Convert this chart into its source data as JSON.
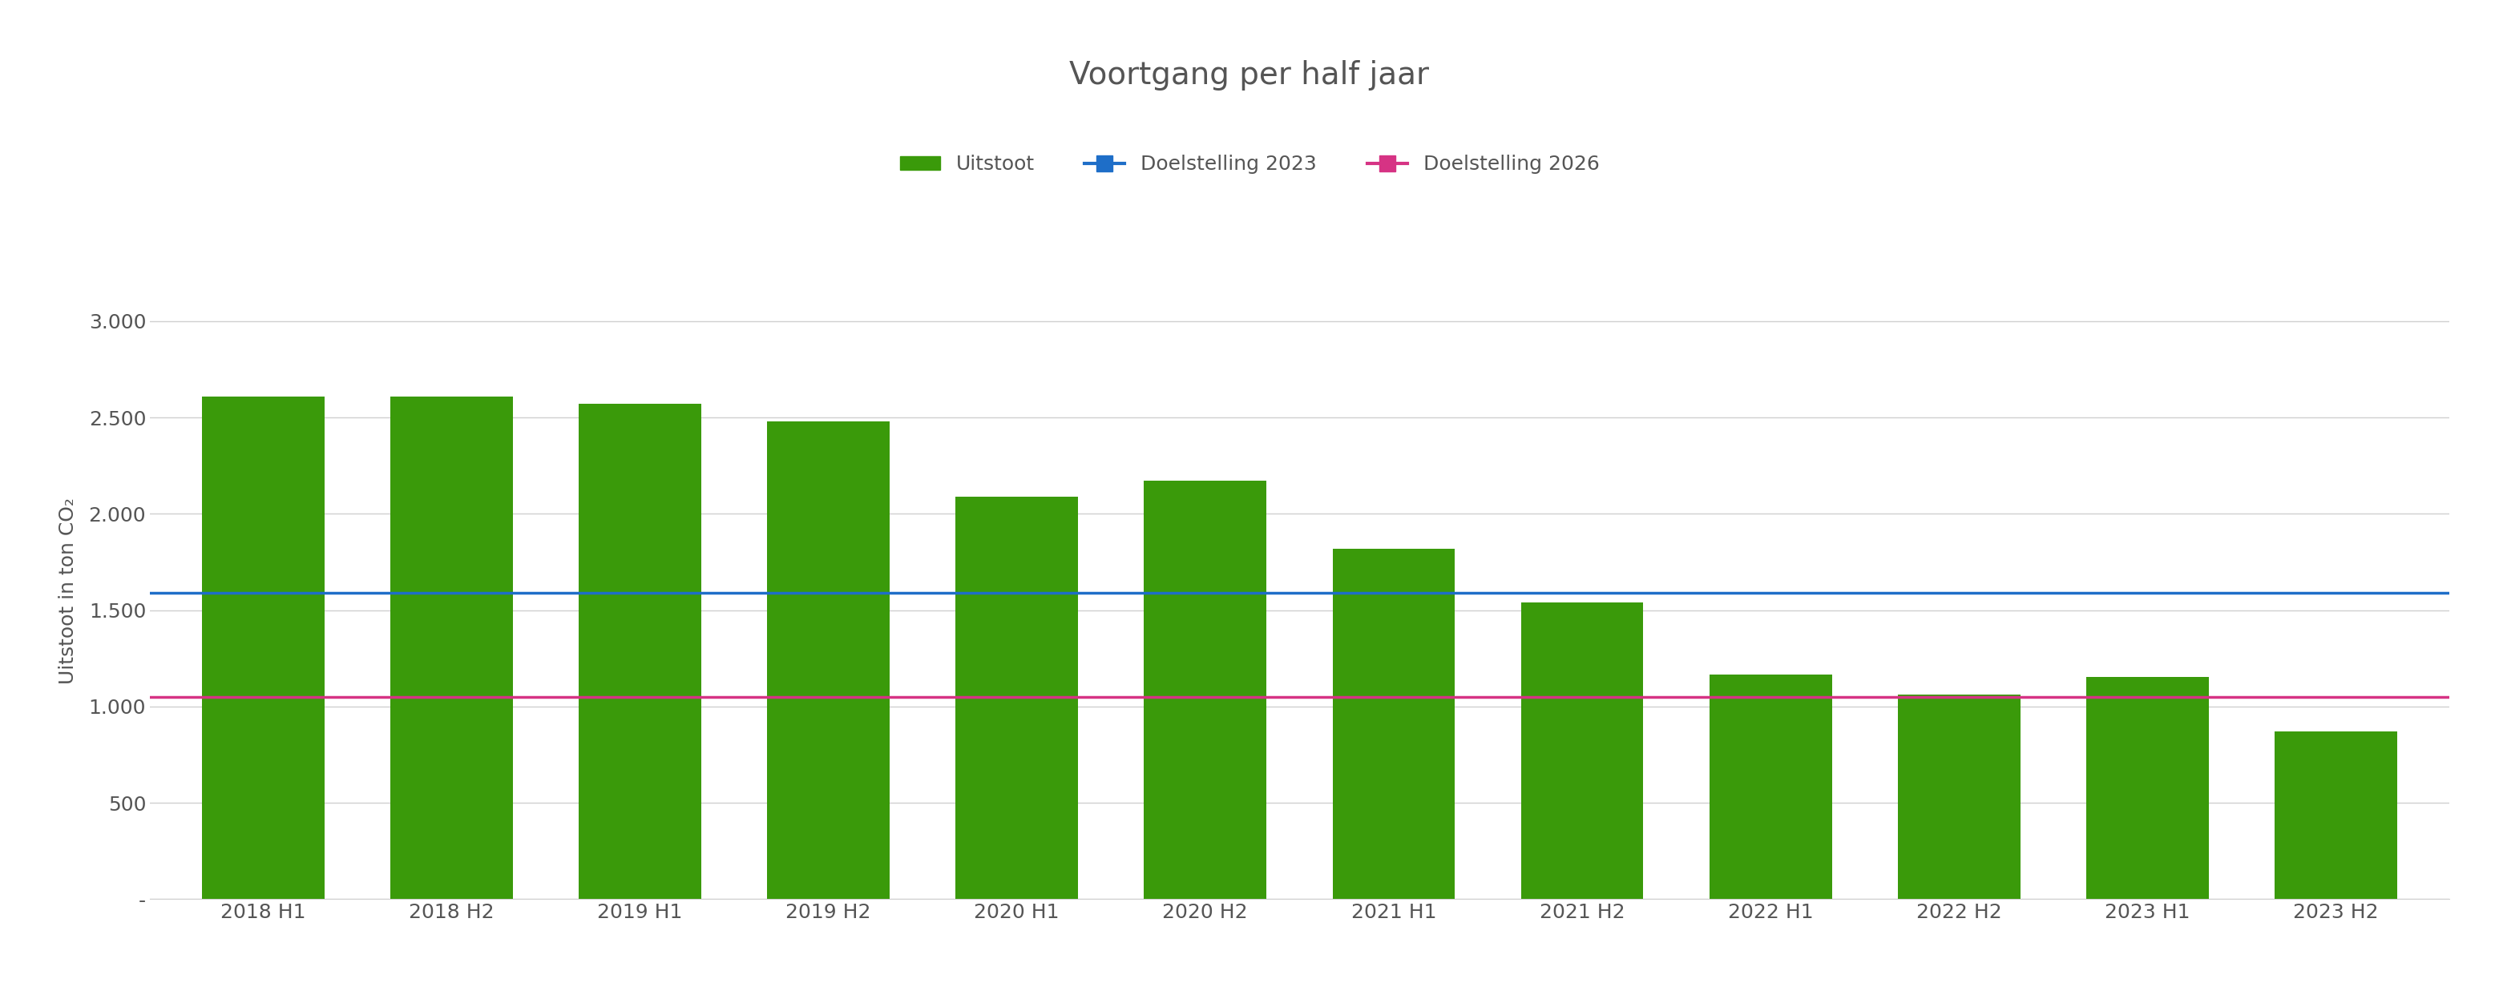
{
  "title": "Voortgang per half jaar",
  "categories": [
    "2018 H1",
    "2018 H2",
    "2019 H1",
    "2019 H2",
    "2020 H1",
    "2020 H2",
    "2021 H1",
    "2021 H2",
    "2022 H1",
    "2022 H2",
    "2023 H1",
    "2023 H2"
  ],
  "values": [
    2610,
    2610,
    2570,
    2480,
    2090,
    2170,
    1820,
    1540,
    1165,
    1060,
    1155,
    870
  ],
  "bar_color": "#3a9a0a",
  "doelstelling_2023": 1590,
  "doelstelling_2026": 1050,
  "doelstelling_2023_color": "#1e6ec8",
  "doelstelling_2026_color": "#d63384",
  "ylabel": "Uitstoot in ton CO₂",
  "ylim_min": 0,
  "ylim_max": 3200,
  "yticks": [
    0,
    500,
    1000,
    1500,
    2000,
    2500,
    3000
  ],
  "ytick_labels": [
    "-",
    "500",
    "1.000",
    "1.500",
    "2.000",
    "2.500",
    "3.000"
  ],
  "background_color": "#ffffff",
  "grid_color": "#d0d0d0",
  "title_fontsize": 28,
  "axis_label_fontsize": 18,
  "tick_fontsize": 18,
  "legend_fontsize": 18,
  "title_color": "#555555",
  "tick_color": "#555555"
}
